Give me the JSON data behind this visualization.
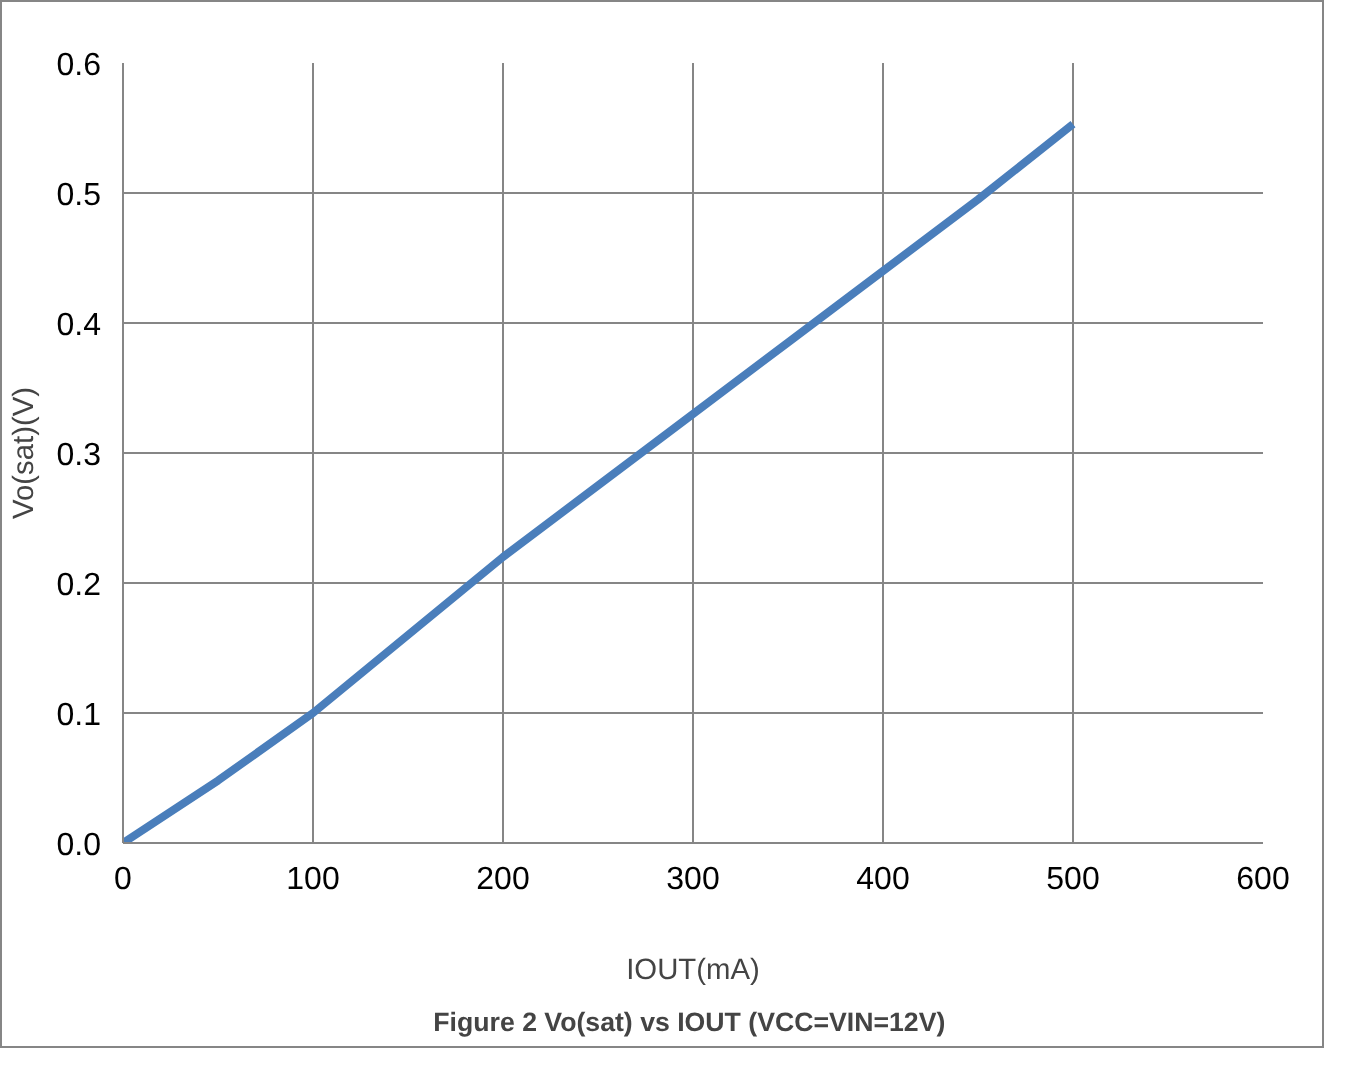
{
  "chart_data": {
    "type": "line",
    "title": "Figure 2  Vo(sat) vs IOUT (VCC=VIN=12V)",
    "xlabel": "IOUT(mA)",
    "ylabel": "Vo(sat)(V)",
    "x": [
      0,
      50,
      100,
      150,
      200,
      250,
      300,
      350,
      400,
      450,
      500
    ],
    "series": [
      {
        "color": "#4a7ebb",
        "values": [
          0,
          0.048,
          0.1,
          0.16,
          0.22,
          0.275,
          0.33,
          0.385,
          0.44,
          0.495,
          0.553
        ]
      }
    ],
    "xlim": [
      0,
      600
    ],
    "xticks": [
      0,
      100,
      200,
      300,
      400,
      500,
      600
    ],
    "ylim": [
      0,
      0.6
    ],
    "yticks": [
      {
        "value": 0,
        "label": "0.0"
      },
      0.1,
      0.2,
      0.3,
      0.4,
      0.5,
      0.6
    ],
    "grid": true,
    "marker": "none",
    "line_style": "solid"
  }
}
